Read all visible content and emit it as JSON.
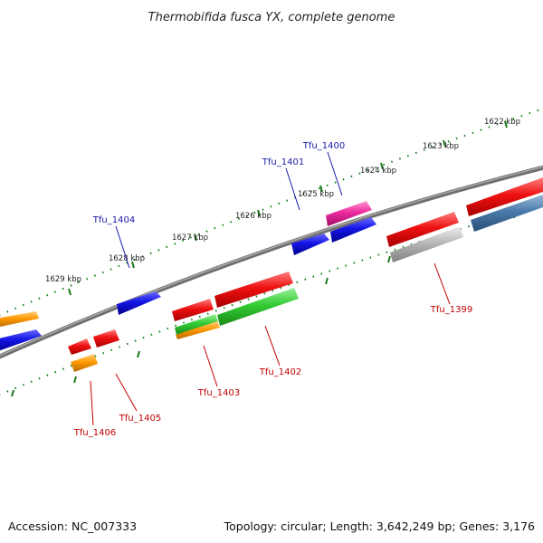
{
  "header": {
    "title": "Thermobifida fusca YX, complete genome"
  },
  "footer": {
    "accession": "Accession: NC_007333",
    "topology": "Topology: circular; Length: 3,642,249 bp; Genes: 3,176"
  },
  "scale_labels": [
    "1622 kbp",
    "1623 kbp",
    "1624 kbp",
    "1625 kbp",
    "1626 kbp",
    "1627 kbp",
    "1628 kbp",
    "1629 kbp"
  ],
  "gene_labels": {
    "tfu_1400": "Tfu_1400",
    "tfu_1401": "Tfu_1401",
    "tfu_1404": "Tfu_1404",
    "tfu_1399": "Tfu_1399",
    "tfu_1402": "Tfu_1402",
    "tfu_1403": "Tfu_1403",
    "tfu_1405": "Tfu_1405",
    "tfu_1406": "Tfu_1406"
  },
  "colors": {
    "red": "#ee1111",
    "blue": "#1414e6",
    "orange": "#ff9900",
    "green": "#33cc33",
    "magenta": "#ee2a9e",
    "gray": "#b8b8b8",
    "steel": "#4a7aaa",
    "backbone": "#808080",
    "tick": "#1a7a1a"
  }
}
